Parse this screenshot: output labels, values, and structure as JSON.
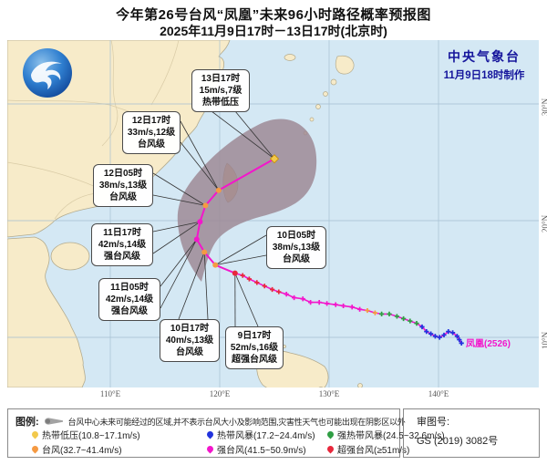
{
  "title": {
    "line1": "今年第26号台风“凤凰”未来96小时路径概率预报图",
    "line2": "2025年11月9日17时－13日17时(北京时)"
  },
  "source": {
    "agency": "中央气象台",
    "issued": "11月9日18时制作"
  },
  "map": {
    "x_ticks": [
      {
        "lon": 110,
        "label": "110°E"
      },
      {
        "lon": 120,
        "label": "120°E"
      },
      {
        "lon": 130,
        "label": "130°E"
      },
      {
        "lon": 140,
        "label": "140°E"
      }
    ],
    "y_ticks": [
      {
        "lat": 30,
        "label": "30°N"
      },
      {
        "lat": 20,
        "label": "20°N"
      },
      {
        "lat": 10,
        "label": "10°N"
      }
    ],
    "storm_label": "凤凰(2526)"
  },
  "colors": {
    "热带低压": "#f2c94c",
    "热带风暴": "#2233dd",
    "强热带风暴": "#2f9e44",
    "台风": "#f59a42",
    "强台风": "#f316cb",
    "超强台风": "#e8283c",
    "track_line": "#f316cb",
    "cone_fill": "#9c8692"
  },
  "callouts": [
    {
      "time": "13日17时",
      "wind": "15m/s,7级",
      "cat": "热带低压"
    },
    {
      "time": "12日17时",
      "wind": "33m/s,12级",
      "cat": "台风级"
    },
    {
      "time": "12日05时",
      "wind": "38m/s,13级",
      "cat": "台风级"
    },
    {
      "time": "11日17时",
      "wind": "42m/s,14级",
      "cat": "强台风级"
    },
    {
      "time": "11日05时",
      "wind": "42m/s,14级",
      "cat": "强台风级"
    },
    {
      "time": "10日17时",
      "wind": "40m/s,13级",
      "cat": "台风级"
    },
    {
      "time": "10日05时",
      "wind": "38m/s,13级",
      "cat": "台风级"
    },
    {
      "time": "9日17时",
      "wind": "52m/s,16级",
      "cat": "超强台风级"
    }
  ],
  "track": {
    "current": {
      "lon": 121.4,
      "lat": 15.5,
      "level": "超强台风"
    },
    "forecast": [
      {
        "lon": 119.6,
        "lat": 16.2,
        "level": "台风"
      },
      {
        "lon": 118.6,
        "lat": 17.3,
        "level": "台风"
      },
      {
        "lon": 117.9,
        "lat": 18.4,
        "level": "强台风"
      },
      {
        "lon": 118.2,
        "lat": 19.9,
        "level": "强台风"
      },
      {
        "lon": 118.7,
        "lat": 21.3,
        "level": "台风"
      },
      {
        "lon": 119.9,
        "lat": 22.6,
        "level": "台风"
      },
      {
        "lon": 125.0,
        "lat": 25.3,
        "level": "热带低压"
      }
    ],
    "history": [
      {
        "lon": 122.1,
        "lat": 15.3,
        "level": "超强台风"
      },
      {
        "lon": 122.7,
        "lat": 15.0,
        "level": "超强台风"
      },
      {
        "lon": 123.4,
        "lat": 14.7,
        "level": "超强台风"
      },
      {
        "lon": 124.1,
        "lat": 14.4,
        "level": "超强台风"
      },
      {
        "lon": 124.8,
        "lat": 14.1,
        "level": "超强台风"
      },
      {
        "lon": 125.4,
        "lat": 13.9,
        "level": "超强台风"
      },
      {
        "lon": 126.1,
        "lat": 13.7,
        "level": "强台风"
      },
      {
        "lon": 126.8,
        "lat": 13.4,
        "level": "强台风"
      },
      {
        "lon": 127.6,
        "lat": 13.3,
        "level": "强台风"
      },
      {
        "lon": 128.3,
        "lat": 13.0,
        "level": "强台风"
      },
      {
        "lon": 129.1,
        "lat": 13.0,
        "level": "强台风"
      },
      {
        "lon": 129.8,
        "lat": 12.9,
        "level": "强台风"
      },
      {
        "lon": 130.6,
        "lat": 12.8,
        "level": "强台风"
      },
      {
        "lon": 131.3,
        "lat": 12.7,
        "level": "强台风"
      },
      {
        "lon": 132.1,
        "lat": 12.6,
        "level": "强台风"
      },
      {
        "lon": 132.8,
        "lat": 12.4,
        "level": "强台风"
      },
      {
        "lon": 133.5,
        "lat": 12.3,
        "level": "台风"
      },
      {
        "lon": 134.2,
        "lat": 12.1,
        "level": "台风"
      },
      {
        "lon": 134.8,
        "lat": 12.0,
        "level": "强热带风暴"
      },
      {
        "lon": 135.5,
        "lat": 12.0,
        "level": "强热带风暴"
      },
      {
        "lon": 136.2,
        "lat": 11.8,
        "level": "强热带风暴"
      },
      {
        "lon": 136.8,
        "lat": 11.6,
        "level": "强热带风暴"
      },
      {
        "lon": 137.4,
        "lat": 11.4,
        "level": "强热带风暴"
      },
      {
        "lon": 138.0,
        "lat": 11.2,
        "level": "强热带风暴"
      },
      {
        "lon": 138.5,
        "lat": 10.9,
        "level": "热带风暴"
      },
      {
        "lon": 138.9,
        "lat": 10.5,
        "level": "热带风暴"
      },
      {
        "lon": 139.3,
        "lat": 10.3,
        "level": "热带风暴"
      },
      {
        "lon": 139.7,
        "lat": 10.1,
        "level": "热带风暴"
      },
      {
        "lon": 140.1,
        "lat": 10.0,
        "level": "热带风暴"
      },
      {
        "lon": 140.5,
        "lat": 10.2,
        "level": "热带风暴"
      },
      {
        "lon": 140.9,
        "lat": 10.5,
        "level": "热带风暴"
      },
      {
        "lon": 141.3,
        "lat": 10.4,
        "level": "热带风暴"
      },
      {
        "lon": 141.7,
        "lat": 10.1,
        "level": "热带风暴"
      },
      {
        "lon": 141.9,
        "lat": 9.8,
        "level": "热带风暴"
      },
      {
        "lon": 142.1,
        "lat": 9.5,
        "level": "热带风暴"
      }
    ]
  },
  "legend": {
    "label": "图例:",
    "cone_note": "台风中心未来可能经过的区域,并不表示台风大小及影响范围,灾害性天气也可能出现在阴影区以外",
    "items": [
      {
        "name": "热带低压",
        "range": "(10.8~17.1m/s)",
        "color": "#f2c94c"
      },
      {
        "name": "热带风暴",
        "range": "(17.2~24.4m/s)",
        "color": "#2233dd"
      },
      {
        "name": "强热带风暴",
        "range": "(24.5~32.6m/s)",
        "color": "#2f9e44"
      },
      {
        "name": "台风",
        "range": "(32.7~41.4m/s)",
        "color": "#f59a42"
      },
      {
        "name": "强台风",
        "range": "(41.5~50.9m/s)",
        "color": "#f316cb"
      },
      {
        "name": "超强台风",
        "range": "(≥51m/s)",
        "color": "#e8283c"
      }
    ]
  },
  "review": {
    "label": "审图号:",
    "number": "GS (2019) 3082号"
  }
}
